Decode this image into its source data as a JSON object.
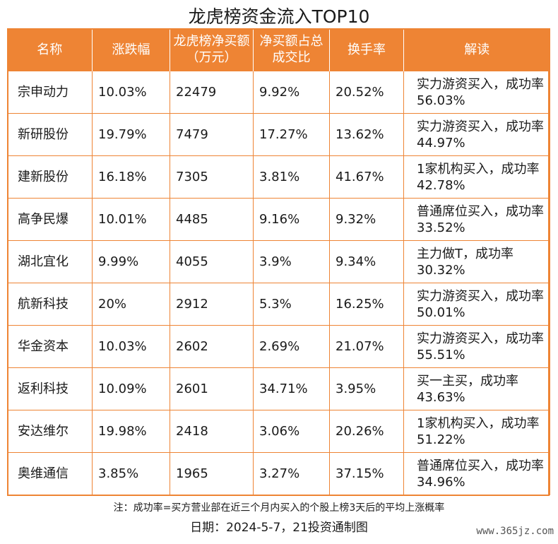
{
  "title": "龙虎榜资金流入TOP10",
  "headers": [
    "名称",
    "涨跌幅",
    "龙虎榜净买额（万元）",
    "净买额占总成交比",
    "换手率",
    "解读"
  ],
  "rows": [
    {
      "name": "宗申动力",
      "change": "10.03%",
      "net_buy": "22479",
      "ratio": "9.92%",
      "turnover": "20.52%",
      "note": "实力游资买入，成功率56.03%"
    },
    {
      "name": "新研股份",
      "change": "19.79%",
      "net_buy": "7479",
      "ratio": "17.27%",
      "turnover": "13.62%",
      "note": "实力游资买入，成功率44.97%"
    },
    {
      "name": "建新股份",
      "change": "16.18%",
      "net_buy": "7305",
      "ratio": "3.81%",
      "turnover": "41.67%",
      "note": "1家机构买入，成功率42.78%"
    },
    {
      "name": "高争民爆",
      "change": "10.01%",
      "net_buy": "4485",
      "ratio": "9.16%",
      "turnover": "9.32%",
      "note": "普通席位买入，成功率33.52%"
    },
    {
      "name": "湖北宜化",
      "change": "9.99%",
      "net_buy": "4055",
      "ratio": "3.9%",
      "turnover": "9.34%",
      "note": "主力做T，成功率30.32%"
    },
    {
      "name": "航新科技",
      "change": "20%",
      "net_buy": "2912",
      "ratio": "5.3%",
      "turnover": "16.25%",
      "note": "实力游资买入，成功率50.01%"
    },
    {
      "name": "华金资本",
      "change": "10.03%",
      "net_buy": "2602",
      "ratio": "2.69%",
      "turnover": "21.07%",
      "note": "实力游资买入，成功率55.51%"
    },
    {
      "name": "返利科技",
      "change": "10.09%",
      "net_buy": "2601",
      "ratio": "34.71%",
      "turnover": "3.95%",
      "note": "买一主买，成功率43.63%"
    },
    {
      "name": "安达维尔",
      "change": "19.98%",
      "net_buy": "2418",
      "ratio": "3.06%",
      "turnover": "20.26%",
      "note": "1家机构买入，成功率51.22%"
    },
    {
      "name": "奥维通信",
      "change": "3.85%",
      "net_buy": "1965",
      "ratio": "3.27%",
      "turnover": "37.15%",
      "note": "普通席位买入，成功率34.96%"
    }
  ],
  "footnote": "注：成功率=买方营业部在近三个月内买入的个股上榜3天后的平均上涨概率",
  "date_line": "日期：2024-5-7，21投资通制图",
  "watermark": "www.365jz.com",
  "colors": {
    "accent": "#ee8434",
    "text": "#1a1a1a"
  }
}
